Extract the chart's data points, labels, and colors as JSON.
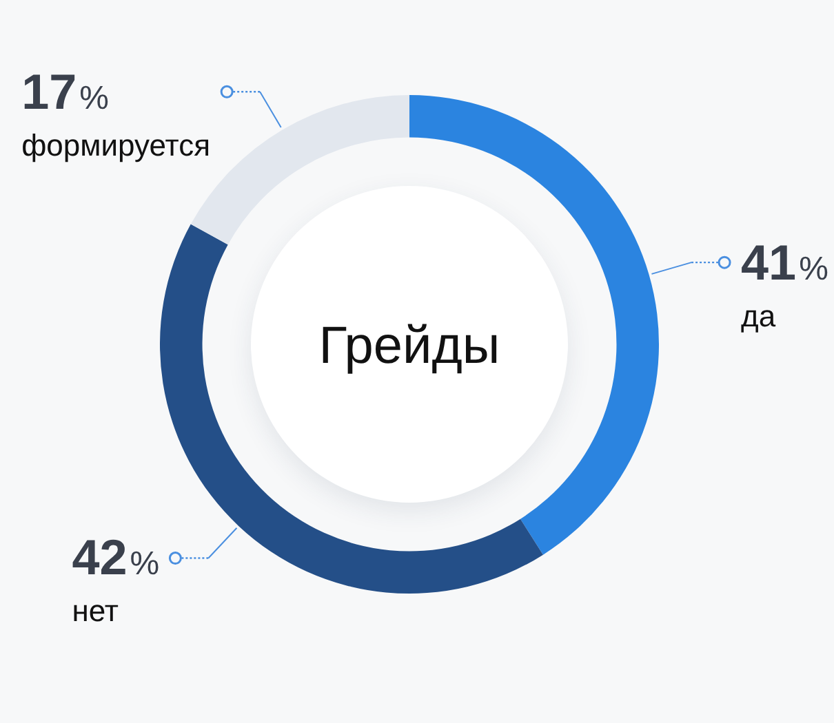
{
  "chart_data": {
    "type": "donut",
    "title": "Грейды",
    "categories": [
      "да",
      "нет",
      "формируется"
    ],
    "values": [
      41,
      42,
      17
    ],
    "colors": [
      "#2b84e0",
      "#244f88",
      "#e2e7ee"
    ],
    "value_labels": [
      "41%",
      "42%",
      "17%"
    ]
  }
}
